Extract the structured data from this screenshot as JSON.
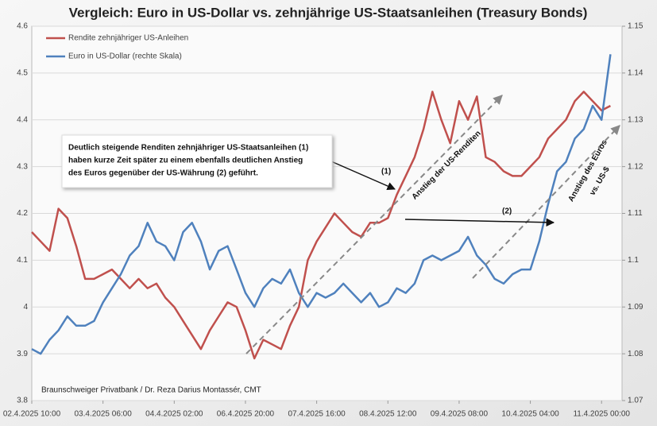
{
  "chart_data": {
    "type": "line",
    "title": "Vergleich: Euro in US-Dollar vs. zehnjährige US-Staatsanleihen (Treasury Bonds)",
    "categories": [
      "02.4.2025 10:00",
      null,
      null,
      null,
      null,
      null,
      null,
      null,
      "03.4.2025 06:00",
      null,
      null,
      null,
      null,
      null,
      null,
      null,
      "04.4.2025 02:00",
      null,
      null,
      null,
      null,
      null,
      null,
      null,
      "06.4.2025 20:00",
      null,
      null,
      null,
      null,
      null,
      null,
      null,
      "07.4.2025 16:00",
      null,
      null,
      null,
      null,
      null,
      null,
      null,
      "08.4.2025 12:00",
      null,
      null,
      null,
      null,
      null,
      null,
      null,
      "09.4.2025 08:00",
      null,
      null,
      null,
      null,
      null,
      null,
      null,
      "10.4.2025 04:00",
      null,
      null,
      null,
      null,
      null,
      null,
      null,
      "11.4.2025 00:00",
      null
    ],
    "series": [
      {
        "name": "Rendite zehnjähriger US-Anleihen",
        "color": "#c0504d",
        "axis": "y",
        "values": [
          4.16,
          4.14,
          4.12,
          4.21,
          4.19,
          4.13,
          4.06,
          4.06,
          4.07,
          4.08,
          4.06,
          4.04,
          4.06,
          4.04,
          4.05,
          4.02,
          4.0,
          3.97,
          3.94,
          3.91,
          3.95,
          3.98,
          4.01,
          4.0,
          3.95,
          3.89,
          3.93,
          3.92,
          3.91,
          3.96,
          4.0,
          4.1,
          4.14,
          4.17,
          4.2,
          4.18,
          4.16,
          4.15,
          4.18,
          4.18,
          4.19,
          4.24,
          4.28,
          4.32,
          4.38,
          4.46,
          4.4,
          4.35,
          4.44,
          4.4,
          4.45,
          4.32,
          4.31,
          4.29,
          4.28,
          4.28,
          4.3,
          4.32,
          4.36,
          4.38,
          4.4,
          4.44,
          4.46,
          4.44,
          4.42,
          4.43
        ]
      },
      {
        "name": "Euro in US-Dollar (rechte Skala)",
        "color": "#4f81bd",
        "axis": "y2",
        "values": [
          1.081,
          1.08,
          1.083,
          1.085,
          1.088,
          1.086,
          1.086,
          1.087,
          1.091,
          1.094,
          1.097,
          1.101,
          1.103,
          1.108,
          1.104,
          1.103,
          1.1,
          1.106,
          1.108,
          1.104,
          1.098,
          1.102,
          1.103,
          1.098,
          1.093,
          1.09,
          1.094,
          1.096,
          1.095,
          1.098,
          1.093,
          1.09,
          1.093,
          1.092,
          1.093,
          1.095,
          1.093,
          1.091,
          1.093,
          1.09,
          1.091,
          1.094,
          1.093,
          1.095,
          1.1,
          1.101,
          1.1,
          1.101,
          1.102,
          1.105,
          1.101,
          1.099,
          1.096,
          1.095,
          1.097,
          1.098,
          1.098,
          1.104,
          1.112,
          1.119,
          1.121,
          1.126,
          1.128,
          1.133,
          1.13,
          1.144
        ]
      }
    ],
    "ylim": [
      3.8,
      4.6
    ],
    "yticks": [
      3.8,
      3.9,
      4,
      4.1,
      4.2,
      4.3,
      4.4,
      4.5,
      4.6
    ],
    "y2lim": [
      1.07,
      1.15
    ],
    "y2ticks": [
      1.07,
      1.08,
      1.09,
      1.1,
      1.11,
      1.12,
      1.13,
      1.14,
      1.15
    ],
    "grid": true,
    "legend": "top-left",
    "annotations": {
      "box": [
        "Deutlich steigende Renditen zehnjähriger US-Staatsanleihen (1)",
        "haben kurze Zeit später zu einem ebenfalls deutlichen Anstieg",
        "des Euros gegenüber der US-Währung (2) geführt."
      ],
      "marker1": "(1)",
      "marker2": "(2)",
      "trend1": "Anstieg der US-Renditen",
      "trend2": [
        "Anstieg des Euros",
        "vs. US-$"
      ],
      "source": "Braunschweiger  Privatbank  / Dr. Reza Darius Montassér, CMT"
    }
  }
}
